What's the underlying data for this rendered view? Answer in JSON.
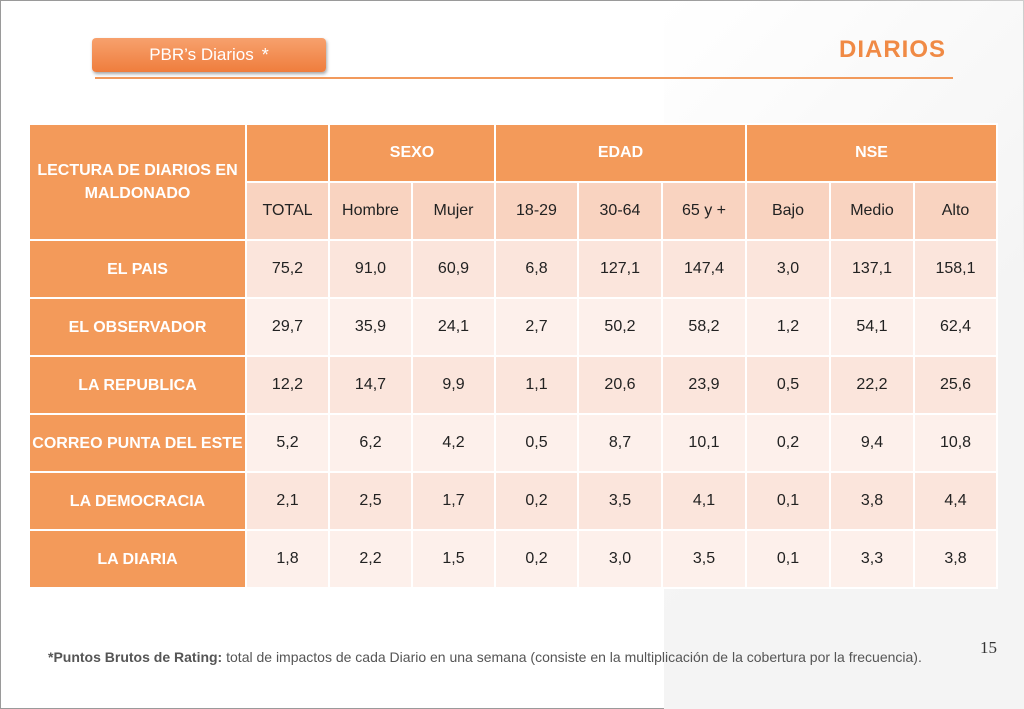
{
  "header": {
    "tag_label": "PBR’s Diarios",
    "tag_star": "*",
    "title": "DIARIOS"
  },
  "table": {
    "corner_label": "LECTURA DE DIARIOS EN MALDONADO",
    "groups": [
      "SEXO",
      "EDAD",
      "NSE"
    ],
    "columns": [
      "TOTAL",
      "Hombre",
      "Mujer",
      "18-29",
      "30-64",
      "65 y +",
      "Bajo",
      "Medio",
      "Alto"
    ],
    "rows": [
      {
        "label": "EL PAIS",
        "values": [
          "75,2",
          "91,0",
          "60,9",
          "6,8",
          "127,1",
          "147,4",
          "3,0",
          "137,1",
          "158,1"
        ]
      },
      {
        "label": "EL OBSERVADOR",
        "values": [
          "29,7",
          "35,9",
          "24,1",
          "2,7",
          "50,2",
          "58,2",
          "1,2",
          "54,1",
          "62,4"
        ]
      },
      {
        "label": "LA REPUBLICA",
        "values": [
          "12,2",
          "14,7",
          "9,9",
          "1,1",
          "20,6",
          "23,9",
          "0,5",
          "22,2",
          "25,6"
        ]
      },
      {
        "label": "CORREO PUNTA DEL ESTE",
        "values": [
          "5,2",
          "6,2",
          "4,2",
          "0,5",
          "8,7",
          "10,1",
          "0,2",
          "9,4",
          "10,8"
        ]
      },
      {
        "label": "LA DEMOCRACIA",
        "values": [
          "2,1",
          "2,5",
          "1,7",
          "0,2",
          "3,5",
          "4,1",
          "0,1",
          "3,8",
          "4,4"
        ]
      },
      {
        "label": "LA DIARIA",
        "values": [
          "1,8",
          "2,2",
          "1,5",
          "0,2",
          "3,0",
          "3,5",
          "0,1",
          "3,3",
          "3,8"
        ]
      }
    ]
  },
  "footer": {
    "note_term": "*Puntos Brutos de Rating:",
    "note_text": " total de impactos de cada Diario en una semana (consiste en la multiplicación de la cobertura por la frecuencia).",
    "page_number": "15"
  },
  "colors": {
    "accent": "#f39a5a",
    "title": "#f08a45",
    "cell_light": "#fdf0eb",
    "cell_dark": "#fbe5dc"
  }
}
